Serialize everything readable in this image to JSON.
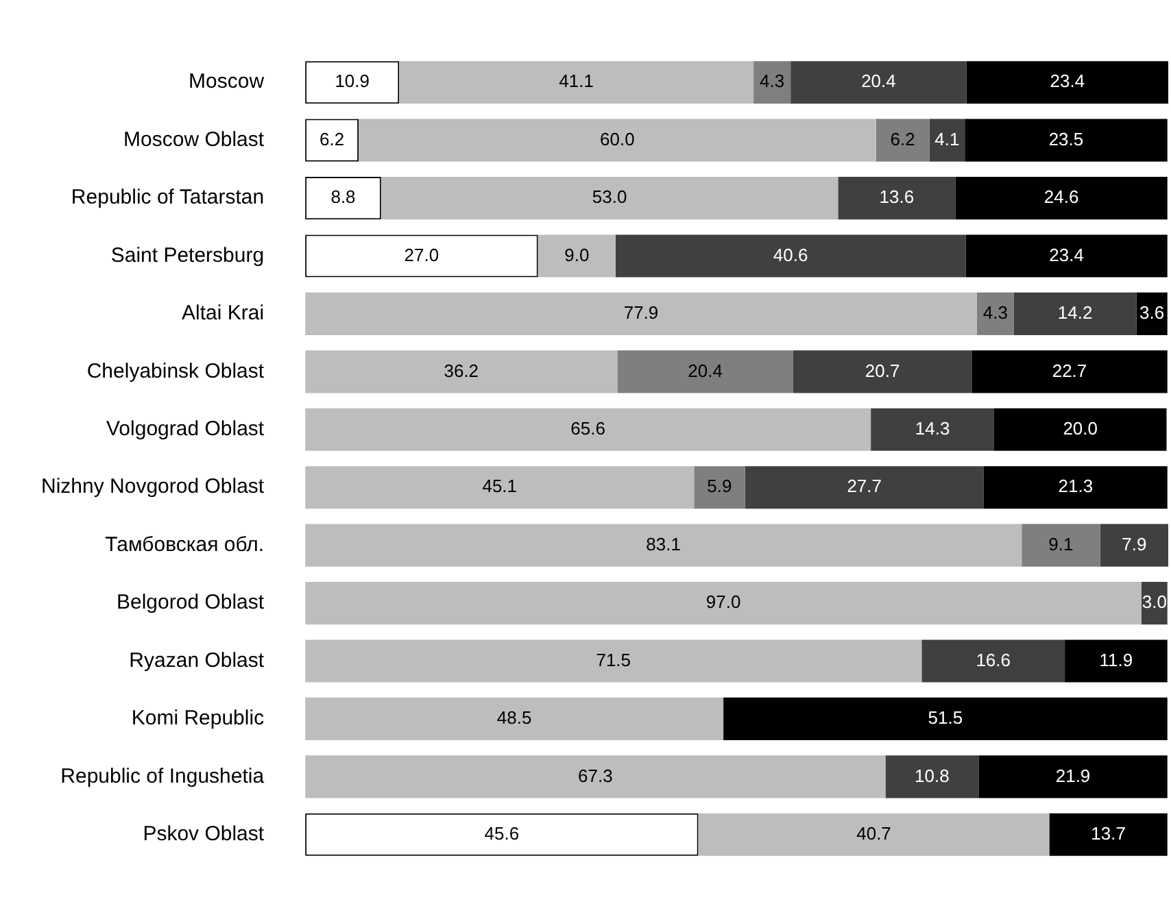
{
  "chart_data": {
    "type": "bar",
    "orientation": "horizontal",
    "stacked": true,
    "tick_labels": "y",
    "xlim": [
      0,
      100.1
    ],
    "categories": [
      "Moscow",
      "Moscow Oblast",
      "Republic of Tatarstan",
      "Saint Petersburg",
      "Altai Krai",
      "Chelyabinsk Oblast",
      "Volgograd Oblast",
      "Nizhny Novgorod Oblast",
      "Тамбовская обл.",
      "Belgorod Oblast",
      "Ryazan Oblast",
      "Komi Republic",
      "Republic of Ingushetia",
      "Pskov Oblast"
    ],
    "series": [
      {
        "color": "#ffffff",
        "values": [
          10.9,
          6.2,
          8.8,
          27.0,
          null,
          null,
          null,
          null,
          null,
          null,
          null,
          null,
          null,
          45.6
        ],
        "value_labels": [
          "10.9",
          "6.2",
          "8.8",
          "27.0",
          null,
          null,
          null,
          null,
          null,
          null,
          null,
          null,
          null,
          "45.6"
        ]
      },
      {
        "color": "#bdbdbd",
        "values": [
          41.1,
          60.0,
          53.0,
          9.0,
          77.9,
          36.2,
          65.6,
          45.1,
          83.1,
          97.0,
          71.5,
          48.5,
          67.3,
          40.7
        ],
        "value_labels": [
          "41.1",
          "60.0",
          "53.0",
          "9.0",
          "77.9",
          "36.2",
          "65.6",
          "45.1",
          "83.1",
          "97.0",
          "71.5",
          "48.5",
          "67.3",
          "40.7"
        ]
      },
      {
        "color": "#7f7f7f",
        "values": [
          4.3,
          6.2,
          null,
          null,
          4.3,
          20.4,
          null,
          5.9,
          9.1,
          null,
          null,
          null,
          null,
          null
        ],
        "value_labels": [
          "4.3",
          "6.2",
          null,
          null,
          "4.3",
          "20.4",
          null,
          "5.9",
          "9.1",
          null,
          null,
          null,
          null,
          null
        ]
      },
      {
        "color": "#404040",
        "values": [
          20.4,
          4.1,
          13.6,
          40.6,
          14.2,
          20.7,
          14.3,
          27.7,
          7.9,
          3.0,
          16.6,
          null,
          10.8,
          null
        ],
        "value_labels": [
          "20.4",
          "4.1",
          "13.6",
          "40.6",
          "14.2",
          "20.7",
          "14.3",
          "27.7",
          "7.9",
          "3.0",
          "16.6",
          null,
          "10.8",
          null
        ]
      },
      {
        "color": "#000000",
        "values": [
          23.4,
          23.5,
          24.6,
          23.4,
          3.6,
          22.7,
          20.0,
          21.3,
          null,
          null,
          11.9,
          51.5,
          21.9,
          13.7
        ],
        "value_labels": [
          "23.4",
          "23.5",
          "24.6",
          "23.4",
          "3.6",
          "22.7",
          "20.0",
          "21.3",
          null,
          null,
          "11.9",
          "51.5",
          "21.9",
          "13.7"
        ]
      }
    ]
  }
}
